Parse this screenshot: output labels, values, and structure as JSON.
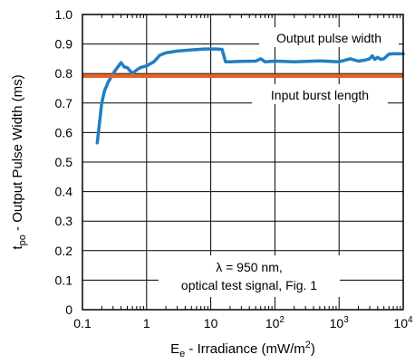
{
  "chart_data": {
    "type": "line",
    "xscale": "log",
    "xlim": [
      0.1,
      10000
    ],
    "ylim": [
      0,
      1.0
    ],
    "grid": true,
    "xlabel": {
      "main": "E",
      "sub": "e",
      "rest": " - Irradiance (mW/m",
      "sup": "2",
      "end": ")"
    },
    "ylabel": {
      "main": "t",
      "sub": "po",
      "rest": " - Output Pulse Width (ms)"
    },
    "x_ticks": [
      {
        "value": 0.1,
        "base": "0.1",
        "sup": ""
      },
      {
        "value": 1,
        "base": "1",
        "sup": ""
      },
      {
        "value": 10,
        "base": "10",
        "sup": ""
      },
      {
        "value": 100,
        "base": "10",
        "sup": "2"
      },
      {
        "value": 1000,
        "base": "10",
        "sup": "3"
      },
      {
        "value": 10000,
        "base": "10",
        "sup": "4"
      }
    ],
    "y_ticks": [
      {
        "value": 0,
        "label": "0"
      },
      {
        "value": 0.1,
        "label": "0.1"
      },
      {
        "value": 0.2,
        "label": "0.2"
      },
      {
        "value": 0.3,
        "label": "0.3"
      },
      {
        "value": 0.4,
        "label": "0.4"
      },
      {
        "value": 0.5,
        "label": "0.5"
      },
      {
        "value": 0.6,
        "label": "0.6"
      },
      {
        "value": 0.7,
        "label": "0.7"
      },
      {
        "value": 0.8,
        "label": "0.8"
      },
      {
        "value": 0.9,
        "label": "0.9"
      },
      {
        "value": 1.0,
        "label": "1.0"
      }
    ],
    "series": [
      {
        "name": "Output pulse width",
        "color": "#1f7fc4",
        "x": [
          0.17,
          0.2,
          0.22,
          0.25,
          0.3,
          0.35,
          0.4,
          0.45,
          0.5,
          0.6,
          0.7,
          0.8,
          1.0,
          1.3,
          1.6,
          2.0,
          3.0,
          5.0,
          8.0,
          12,
          15,
          17,
          20,
          30,
          50,
          60,
          70,
          100,
          200,
          500,
          1000,
          1500,
          2000,
          2500,
          3000,
          3300,
          3600,
          4000,
          4500,
          5000,
          6000,
          7000,
          10000
        ],
        "y": [
          0.565,
          0.7,
          0.74,
          0.77,
          0.8,
          0.82,
          0.837,
          0.822,
          0.82,
          0.8,
          0.812,
          0.82,
          0.826,
          0.84,
          0.862,
          0.87,
          0.876,
          0.88,
          0.883,
          0.883,
          0.882,
          0.84,
          0.84,
          0.841,
          0.842,
          0.85,
          0.84,
          0.842,
          0.84,
          0.843,
          0.84,
          0.85,
          0.842,
          0.845,
          0.85,
          0.86,
          0.848,
          0.855,
          0.848,
          0.85,
          0.866,
          0.867,
          0.867
        ]
      },
      {
        "name": "Input burst length",
        "color": "#e0622a",
        "x": [
          0.1,
          10000
        ],
        "y": [
          0.792,
          0.792
        ]
      }
    ],
    "annotations": {
      "line1": "λ = 950 nm,",
      "line2": "optical test signal, Fig. 1"
    }
  }
}
